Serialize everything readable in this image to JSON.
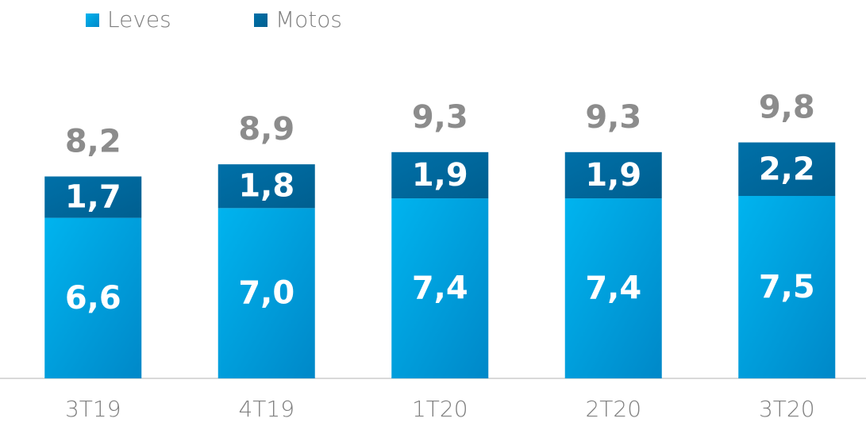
{
  "chart_data": {
    "type": "stacked_bar",
    "categories": [
      "3T19",
      "4T19",
      "1T20",
      "2T20",
      "3T20"
    ],
    "series": [
      {
        "name": "Leves",
        "color": "#00b4ef",
        "values": [
          6.6,
          7.0,
          7.4,
          7.4,
          7.5
        ],
        "value_labels": [
          "6,6",
          "7,0",
          "7,4",
          "7,4",
          "7,5"
        ]
      },
      {
        "name": "Motos",
        "color": "#0070a8",
        "values": [
          1.7,
          1.8,
          1.9,
          1.9,
          2.2
        ],
        "value_labels": [
          "1,7",
          "1,8",
          "1,9",
          "1,9",
          "2,2"
        ]
      }
    ],
    "totals": {
      "values": [
        8.2,
        8.9,
        9.3,
        9.3,
        9.8
      ],
      "value_labels": [
        "8,2",
        "8,9",
        "9,3",
        "9,3",
        "9,8"
      ]
    },
    "ylim": [
      0,
      12
    ],
    "legend": "top-left"
  }
}
